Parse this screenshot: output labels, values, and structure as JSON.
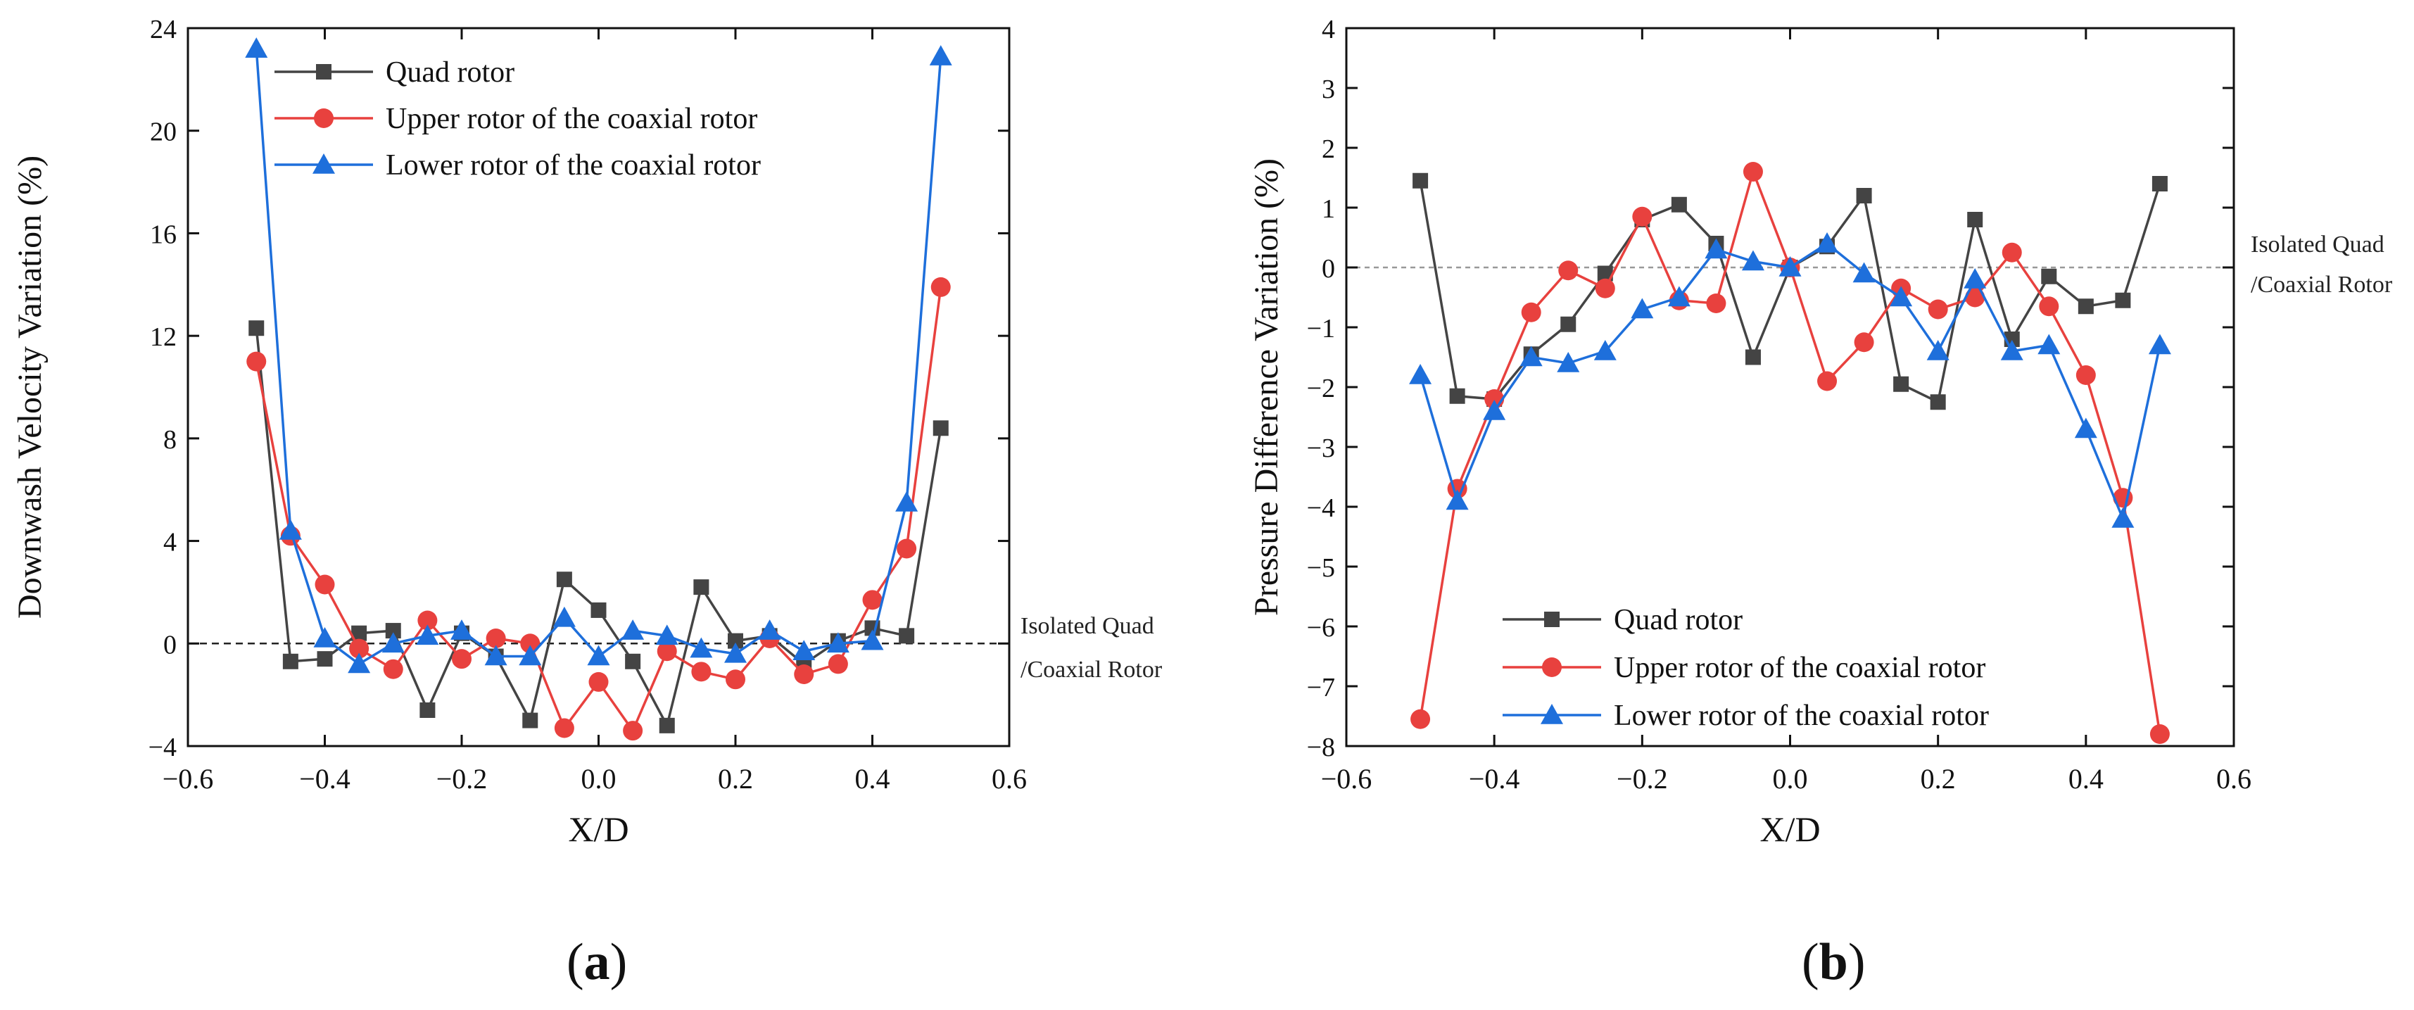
{
  "chart_data": [
    {
      "type": "line",
      "panel": "a",
      "xlabel": "X/D",
      "ylabel": "Downwash Velocity Variation (%)",
      "xlim": [
        -0.6,
        0.6
      ],
      "ylim": [
        -4,
        24
      ],
      "xticks": [
        -0.6,
        -0.4,
        -0.2,
        0.0,
        0.2,
        0.4,
        0.6
      ],
      "xtick_labels": [
        "−0.6",
        "−0.4",
        "−0.2",
        "0.0",
        "0.2",
        "0.4",
        "0.6"
      ],
      "yticks": [
        -4,
        0,
        4,
        8,
        12,
        16,
        20,
        24
      ],
      "ytick_labels": [
        "−4",
        "0",
        "4",
        "8",
        "12",
        "16",
        "20",
        "24"
      ],
      "reference_line": {
        "y": 0,
        "label_line1": "Isolated Quad",
        "label_line2": "/Coaxial Rotor"
      },
      "legend_position": "top-left",
      "x": [
        -0.5,
        -0.45,
        -0.4,
        -0.35,
        -0.3,
        -0.25,
        -0.2,
        -0.15,
        -0.1,
        -0.05,
        0.0,
        0.05,
        0.1,
        0.15,
        0.2,
        0.25,
        0.3,
        0.35,
        0.4,
        0.45,
        0.5
      ],
      "series": [
        {
          "name": "Quad rotor",
          "color": "#444444",
          "marker": "square",
          "values": [
            12.3,
            -0.7,
            -0.6,
            0.4,
            0.5,
            -2.6,
            0.4,
            -0.5,
            -3.0,
            2.5,
            1.3,
            -0.7,
            -3.2,
            2.2,
            0.1,
            0.3,
            -0.8,
            0.1,
            0.6,
            0.3,
            8.4
          ]
        },
        {
          "name": "Upper rotor of the coaxial rotor",
          "color": "#e8413e",
          "marker": "circle",
          "values": [
            11.0,
            4.2,
            2.3,
            -0.2,
            -1.0,
            0.9,
            -0.6,
            0.2,
            0.0,
            -3.3,
            -1.5,
            -3.4,
            -0.3,
            -1.1,
            -1.4,
            0.2,
            -1.2,
            -0.8,
            1.7,
            3.7,
            13.9
          ]
        },
        {
          "name": "Lower rotor of the coaxial rotor",
          "color": "#1e6fdb",
          "marker": "triangle",
          "values": [
            23.2,
            4.4,
            0.2,
            -0.8,
            0.0,
            0.3,
            0.5,
            -0.5,
            -0.5,
            1.0,
            -0.5,
            0.5,
            0.3,
            -0.2,
            -0.4,
            0.5,
            -0.3,
            0.0,
            0.1,
            5.5,
            22.9
          ]
        }
      ],
      "caption": "a"
    },
    {
      "type": "line",
      "panel": "b",
      "xlabel": "X/D",
      "ylabel": "Pressure Difference Variation (%)",
      "xlim": [
        -0.6,
        0.6
      ],
      "ylim": [
        -8,
        4
      ],
      "xticks": [
        -0.6,
        -0.4,
        -0.2,
        0.0,
        0.2,
        0.4,
        0.6
      ],
      "xtick_labels": [
        "−0.6",
        "−0.4",
        "−0.2",
        "0.0",
        "0.2",
        "0.4",
        "0.6"
      ],
      "yticks": [
        -8,
        -7,
        -6,
        -5,
        -4,
        -3,
        -2,
        -1,
        0,
        1,
        2,
        3,
        4
      ],
      "ytick_labels": [
        "−8",
        "−7",
        "−6",
        "−5",
        "−4",
        "−3",
        "−2",
        "−1",
        "0",
        "1",
        "2",
        "3",
        "4"
      ],
      "reference_line": {
        "y": 0,
        "label_line1": "Isolated Quad",
        "label_line2": "/Coaxial Rotor"
      },
      "legend_position": "bottom-left",
      "x": [
        -0.5,
        -0.45,
        -0.4,
        -0.35,
        -0.3,
        -0.25,
        -0.2,
        -0.15,
        -0.1,
        -0.05,
        0.0,
        0.05,
        0.1,
        0.15,
        0.2,
        0.25,
        0.3,
        0.35,
        0.4,
        0.45,
        0.5
      ],
      "series": [
        {
          "name": "Quad rotor",
          "color": "#444444",
          "marker": "square",
          "values": [
            1.45,
            -2.15,
            -2.2,
            -1.45,
            -0.95,
            -0.1,
            0.8,
            1.05,
            0.4,
            -1.5,
            0.0,
            0.35,
            1.2,
            -1.95,
            -2.25,
            0.8,
            -1.2,
            -0.15,
            -0.65,
            -0.55,
            1.4
          ]
        },
        {
          "name": "Upper rotor of the coaxial rotor",
          "color": "#e8413e",
          "marker": "circle",
          "values": [
            -7.55,
            -3.7,
            -2.2,
            -0.75,
            -0.05,
            -0.35,
            0.85,
            -0.55,
            -0.6,
            1.6,
            0.0,
            -1.9,
            -1.25,
            -0.35,
            -0.7,
            -0.5,
            0.25,
            -0.65,
            -1.8,
            -3.85,
            -7.8
          ]
        },
        {
          "name": "Lower rotor of the coaxial rotor",
          "color": "#1e6fdb",
          "marker": "triangle",
          "values": [
            -1.8,
            -3.9,
            -2.4,
            -1.5,
            -1.6,
            -1.4,
            -0.7,
            -0.5,
            0.3,
            0.1,
            0.0,
            0.4,
            -0.1,
            -0.5,
            -1.4,
            -0.2,
            -1.4,
            -1.3,
            -2.7,
            -4.2,
            -1.3
          ]
        }
      ],
      "caption": "b"
    }
  ]
}
